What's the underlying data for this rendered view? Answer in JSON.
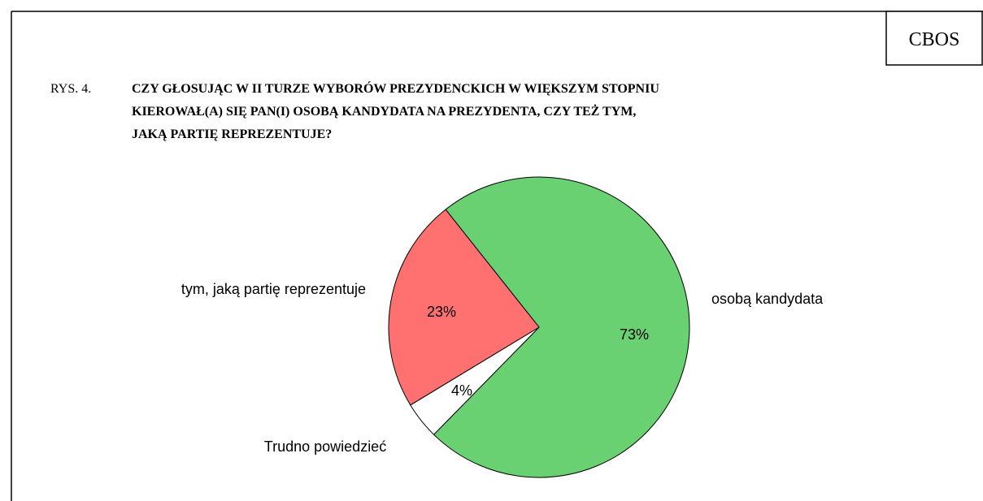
{
  "header": {
    "source": "CBOS",
    "figure_label": "RYS. 4."
  },
  "chart_data": {
    "type": "pie",
    "title_lines": [
      "CZY GŁOSUJĄC W II TURZE WYBORÓW PREZYDENCKICH W WIĘKSZYM STOPNIU",
      "KIEROWAŁ(A) SIĘ PAN(I) OSOBĄ KANDYDATA NA PREZYDENTA, CZY TEŻ TYM,",
      "JAKĄ PARTIĘ REPREZENTUJE?"
    ],
    "categories": [
      "osobą kandydata",
      "Trudno powiedzieć",
      "tym, jaką partię reprezentuje"
    ],
    "values": [
      73,
      4,
      23
    ],
    "value_labels": [
      "73%",
      "4%",
      "23%"
    ],
    "colors": [
      "#6ad172",
      "#ffffff",
      "#ff7070"
    ]
  }
}
